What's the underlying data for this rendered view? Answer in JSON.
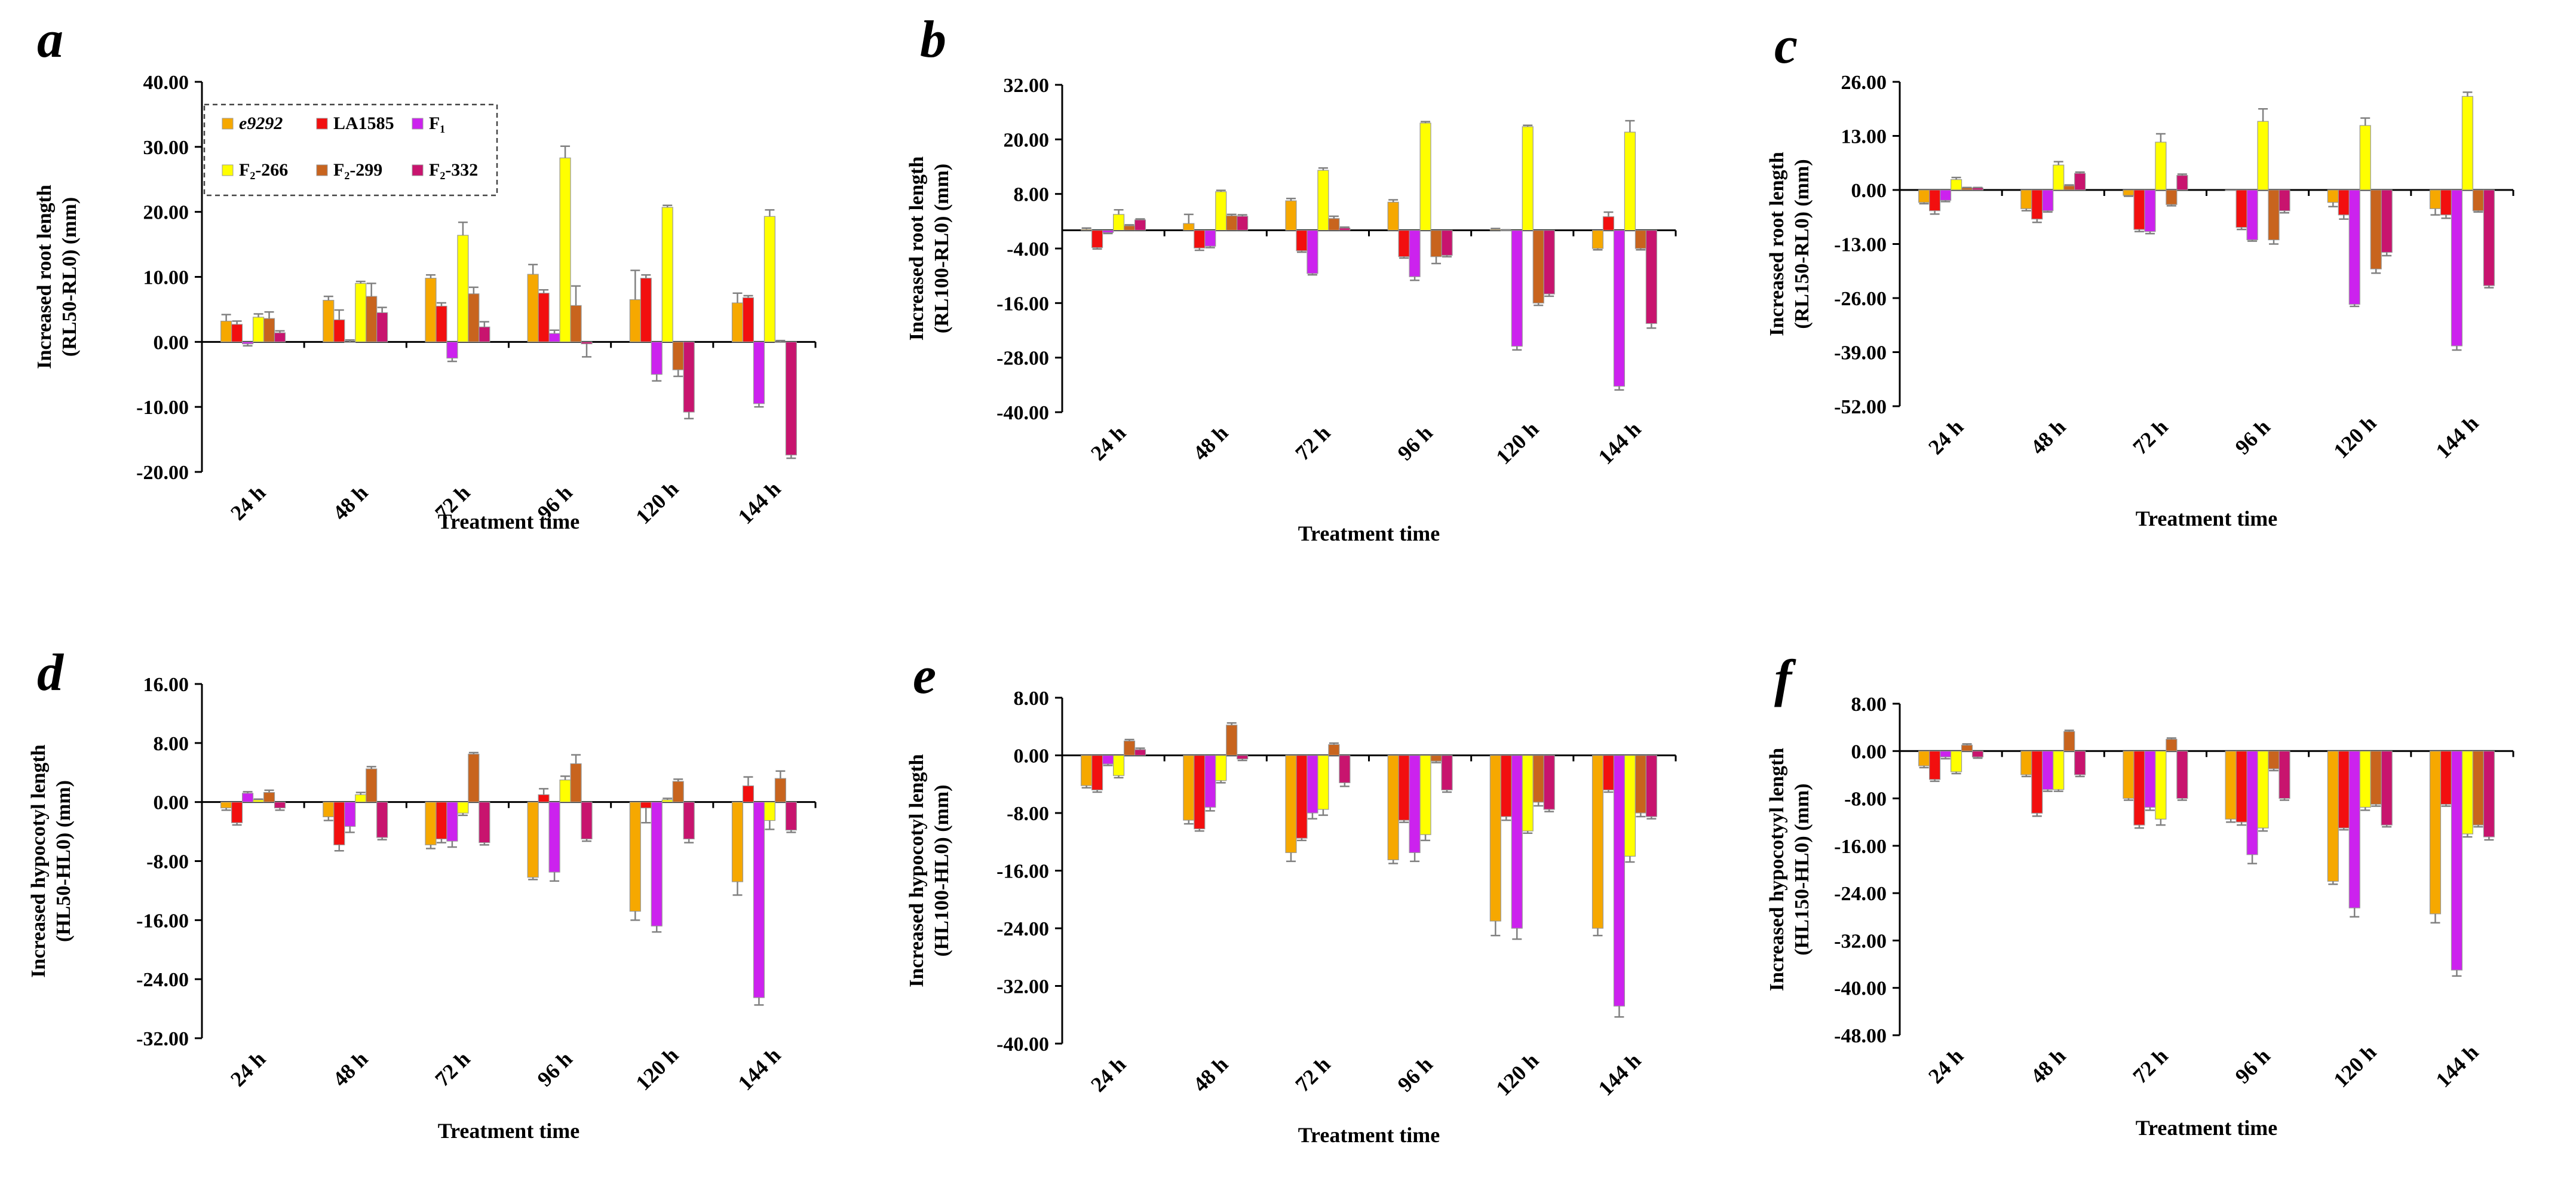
{
  "figure": {
    "type": "grouped bar chart panels"
  },
  "colors": {
    "e9292": "#F6A800",
    "LA1585": "#F20F0F",
    "F1": "#CC22EE",
    "F2-266": "#FFFF00",
    "F2-299": "#C8641E",
    "F2-332": "#C8146E",
    "errorbar": "#808080",
    "axis": "#000000"
  },
  "chart_data": [
    {
      "panel": "a",
      "type": "bar",
      "categories": [
        "24 h",
        "48 h",
        "72 h",
        "96 h",
        "120 h",
        "144 h"
      ],
      "xlabel": "Treatment time",
      "ylabel": [
        "Increased root length",
        "(RL50-RL0) (mm)"
      ],
      "yticks": [
        "40.00",
        "30.00",
        "20.00",
        "10.00",
        "0.00",
        "-10.00",
        "-20.00"
      ],
      "ylim": [
        -20,
        40
      ],
      "legend": "top-left",
      "series": [
        {
          "name": "e9292",
          "values": [
            3.2,
            6.4,
            9.8,
            10.4,
            6.5,
            6.0
          ],
          "err": [
            1.0,
            0.6,
            0.5,
            1.5,
            4.5,
            1.5
          ]
        },
        {
          "name": "LA1585",
          "values": [
            2.7,
            3.4,
            5.5,
            7.5,
            9.8,
            6.8
          ],
          "err": [
            0.5,
            1.5,
            0.5,
            0.5,
            0.5,
            0.3
          ]
        },
        {
          "name": "F₁",
          "values": [
            -0.3,
            0.0,
            -2.5,
            1.3,
            -5.0,
            -9.5
          ],
          "err": [
            0.3,
            0.3,
            0.5,
            0.5,
            1.0,
            0.5
          ]
        },
        {
          "name": "F₂-266",
          "values": [
            3.8,
            9.0,
            16.4,
            28.3,
            20.7,
            19.3
          ],
          "err": [
            0.5,
            0.3,
            2.0,
            1.8,
            0.3,
            1.0
          ]
        },
        {
          "name": "F₂-299",
          "values": [
            3.6,
            7.0,
            7.4,
            5.6,
            -4.3,
            0.0
          ],
          "err": [
            1.0,
            2.0,
            1.0,
            3.0,
            1.0,
            0.2
          ]
        },
        {
          "name": "F₂-332",
          "values": [
            1.4,
            4.5,
            2.3,
            -0.3,
            -10.8,
            -17.4
          ],
          "err": [
            0.3,
            0.8,
            0.8,
            2.0,
            1.0,
            0.5
          ]
        }
      ],
      "legend_entries": [
        "e9292",
        "LA1585",
        "F₁",
        "F₂-266",
        "F₂-299",
        "F₂-332"
      ]
    },
    {
      "panel": "b",
      "type": "bar",
      "categories": [
        "24 h",
        "48 h",
        "72 h",
        "96 h",
        "120 h",
        "144 h"
      ],
      "xlabel": "Treatment time",
      "ylabel": [
        "Increased root length",
        "(RL100-RL0) (mm)"
      ],
      "yticks": [
        "32.00",
        "20.00",
        "8.00",
        "-4.00",
        "-16.00",
        "-28.00",
        "-40.00"
      ],
      "ylim": [
        -40,
        32
      ],
      "series": [
        {
          "name": "e9292",
          "values": [
            0.2,
            1.5,
            6.5,
            6.2,
            0.2,
            -4.0
          ],
          "err": [
            0.3,
            2.0,
            0.5,
            0.5,
            0.2,
            0.3
          ]
        },
        {
          "name": "LA1585",
          "values": [
            -3.8,
            -3.9,
            -4.5,
            -5.8,
            0.0,
            3.0
          ],
          "err": [
            0.3,
            0.5,
            0.3,
            0.3,
            0.1,
            1.0
          ]
        },
        {
          "name": "F₁",
          "values": [
            -0.5,
            -3.5,
            -9.5,
            -10.2,
            -25.5,
            -34.3
          ],
          "err": [
            0.2,
            0.3,
            0.3,
            0.8,
            0.8,
            0.8
          ]
        },
        {
          "name": "F₂-266",
          "values": [
            3.5,
            8.5,
            13.2,
            23.6,
            22.8,
            21.6
          ],
          "err": [
            1.0,
            0.3,
            0.5,
            0.3,
            0.3,
            2.5
          ]
        },
        {
          "name": "F₂-299",
          "values": [
            1.0,
            3.2,
            2.6,
            -5.8,
            -16.0,
            -4.0
          ],
          "err": [
            0.2,
            0.3,
            0.5,
            1.5,
            0.5,
            0.3
          ]
        },
        {
          "name": "F₂-332",
          "values": [
            2.3,
            3.1,
            0.5,
            -5.5,
            -14.0,
            -20.5
          ],
          "err": [
            0.2,
            0.3,
            0.2,
            0.3,
            0.5,
            1.0
          ]
        }
      ]
    },
    {
      "panel": "c",
      "type": "bar",
      "categories": [
        "24 h",
        "48 h",
        "72 h",
        "96 h",
        "120 h",
        "144 h"
      ],
      "xlabel": "Treatment time",
      "ylabel": [
        "Increased root length",
        "(RL150-RL0) (mm)"
      ],
      "yticks": [
        "26.00",
        "13.00",
        "0.00",
        "-13.00",
        "-26.00",
        "-39.00",
        "-52.00"
      ],
      "ylim": [
        -52,
        26
      ],
      "series": [
        {
          "name": "e9292",
          "values": [
            -3.0,
            -4.5,
            -1.3,
            0.0,
            -3.0,
            -4.5
          ],
          "err": [
            0.3,
            0.5,
            0.2,
            0.0,
            1.0,
            1.5
          ]
        },
        {
          "name": "LA1585",
          "values": [
            -5.0,
            -7.0,
            -9.5,
            -9.0,
            -6.0,
            -6.0
          ],
          "err": [
            0.8,
            0.8,
            0.5,
            0.5,
            1.0,
            0.8
          ]
        },
        {
          "name": "F₁",
          "values": [
            -2.5,
            -5.0,
            -10.0,
            -12.0,
            -27.5,
            -37.5
          ],
          "err": [
            0.3,
            0.3,
            0.5,
            0.3,
            0.5,
            1.0
          ]
        },
        {
          "name": "F₂-266",
          "values": [
            2.5,
            6.0,
            11.5,
            16.5,
            15.5,
            22.5
          ],
          "err": [
            0.5,
            0.8,
            2.0,
            3.0,
            1.8,
            1.0
          ]
        },
        {
          "name": "F₂-299",
          "values": [
            0.5,
            1.0,
            -3.5,
            -12.0,
            -19.0,
            -5.0
          ],
          "err": [
            0.1,
            0.2,
            0.3,
            1.0,
            1.0,
            0.3
          ]
        },
        {
          "name": "F₂-332",
          "values": [
            0.5,
            4.0,
            3.5,
            -5.0,
            -15.0,
            -23.0
          ],
          "err": [
            0.1,
            0.3,
            0.3,
            0.5,
            0.8,
            0.5
          ]
        }
      ]
    },
    {
      "panel": "d",
      "type": "bar",
      "categories": [
        "24 h",
        "48 h",
        "72 h",
        "96 h",
        "120 h",
        "144 h"
      ],
      "xlabel": "Treatment time",
      "ylabel": [
        "Increased hypocotyl length",
        "(HL50-HL0) (mm)"
      ],
      "yticks": [
        "16.00",
        "8.00",
        "0.00",
        "-8.00",
        "-16.00",
        "-24.00",
        "-32.00"
      ],
      "ylim": [
        -32,
        16
      ],
      "series": [
        {
          "name": "e9292",
          "values": [
            -0.8,
            -2.0,
            -5.8,
            -10.2,
            -14.8,
            -10.8
          ],
          "err": [
            0.3,
            0.5,
            0.5,
            0.3,
            1.2,
            1.8
          ]
        },
        {
          "name": "LA1585",
          "values": [
            -2.8,
            -5.8,
            -5.0,
            1.0,
            -0.8,
            2.2
          ],
          "err": [
            0.3,
            0.8,
            0.5,
            0.8,
            2.0,
            1.2
          ]
        },
        {
          "name": "F₁",
          "values": [
            1.2,
            -3.3,
            -5.3,
            -9.5,
            -16.8,
            -26.5
          ],
          "err": [
            0.2,
            0.8,
            0.8,
            1.2,
            0.8,
            1.0
          ]
        },
        {
          "name": "F₂-266",
          "values": [
            0.3,
            1.0,
            -1.5,
            3.0,
            0.3,
            -2.5
          ],
          "err": [
            0.1,
            0.3,
            0.3,
            0.5,
            0.2,
            1.2
          ]
        },
        {
          "name": "F₂-299",
          "values": [
            1.3,
            4.5,
            6.5,
            5.2,
            2.8,
            3.2
          ],
          "err": [
            0.3,
            0.3,
            0.2,
            1.2,
            0.3,
            1.0
          ]
        },
        {
          "name": "F₂-332",
          "values": [
            -0.8,
            -4.8,
            -5.5,
            -5.0,
            -5.0,
            -3.8
          ],
          "err": [
            0.3,
            0.3,
            0.3,
            0.3,
            0.5,
            0.3
          ]
        }
      ]
    },
    {
      "panel": "e",
      "type": "bar",
      "categories": [
        "24 h",
        "48 h",
        "72 h",
        "96 h",
        "120 h",
        "144 h"
      ],
      "xlabel": "Treatment time",
      "ylabel": [
        "Increased hypocotyl length",
        "(HL100-HL0) (mm)"
      ],
      "yticks": [
        "8.00",
        "0.00",
        "-8.00",
        "-16.00",
        "-24.00",
        "-32.00",
        "-40.00"
      ],
      "ylim": [
        -40,
        8
      ],
      "series": [
        {
          "name": "e9292",
          "values": [
            -4.2,
            -9.0,
            -13.5,
            -14.5,
            -23.0,
            -24.0
          ],
          "err": [
            0.3,
            0.5,
            1.2,
            0.5,
            2.0,
            1.0
          ]
        },
        {
          "name": "LA1585",
          "values": [
            -4.8,
            -10.2,
            -11.5,
            -9.0,
            -8.5,
            -4.8
          ],
          "err": [
            0.3,
            0.3,
            0.3,
            0.3,
            0.5,
            0.3
          ]
        },
        {
          "name": "F₁",
          "values": [
            -1.2,
            -7.2,
            -8.0,
            -13.5,
            -24.0,
            -34.8
          ],
          "err": [
            0.2,
            0.5,
            0.8,
            1.2,
            1.5,
            1.5
          ]
        },
        {
          "name": "F₂-266",
          "values": [
            -2.8,
            -3.5,
            -7.5,
            -11.0,
            -10.5,
            -14.0
          ],
          "err": [
            0.3,
            0.3,
            0.8,
            0.8,
            0.3,
            0.8
          ]
        },
        {
          "name": "F₂-299",
          "values": [
            2.0,
            4.2,
            1.5,
            -0.8,
            -6.5,
            -8.0
          ],
          "err": [
            0.2,
            0.3,
            0.2,
            0.2,
            0.5,
            0.5
          ]
        },
        {
          "name": "F₂-332",
          "values": [
            0.8,
            -0.5,
            -3.8,
            -4.8,
            -7.5,
            -8.5
          ],
          "err": [
            0.2,
            0.2,
            0.5,
            0.3,
            0.3,
            0.3
          ]
        }
      ]
    },
    {
      "panel": "f",
      "type": "bar",
      "categories": [
        "24 h",
        "48 h",
        "72 h",
        "96 h",
        "120 h",
        "144 h"
      ],
      "xlabel": "Treatment time",
      "ylabel": [
        "Increased hypocotyyl length",
        "(HL150-HL0) (mm)"
      ],
      "yticks": [
        "8.00",
        "0.00",
        "-8.00",
        "-16.00",
        "-24.00",
        "-32.00",
        "-40.00",
        "-48.00"
      ],
      "ylim": [
        -48,
        8
      ],
      "series": [
        {
          "name": "e9292",
          "values": [
            -2.5,
            -4.0,
            -8.0,
            -11.5,
            -22.0,
            -27.5
          ],
          "err": [
            0.3,
            0.3,
            0.3,
            0.5,
            0.5,
            1.5
          ]
        },
        {
          "name": "LA1585",
          "values": [
            -4.8,
            -10.5,
            -12.5,
            -12.0,
            -13.0,
            -9.0
          ],
          "err": [
            0.3,
            0.5,
            0.5,
            0.5,
            0.3,
            0.3
          ]
        },
        {
          "name": "F₁",
          "values": [
            -1.0,
            -6.5,
            -9.5,
            -17.5,
            -26.5,
            -37.0
          ],
          "err": [
            0.3,
            0.3,
            0.5,
            1.5,
            1.5,
            1.0
          ]
        },
        {
          "name": "F₂-266",
          "values": [
            -3.5,
            -6.5,
            -11.5,
            -13.0,
            -9.5,
            -14.0
          ],
          "err": [
            0.3,
            0.3,
            1.0,
            0.5,
            0.5,
            0.5
          ]
        },
        {
          "name": "F₂-299",
          "values": [
            1.0,
            3.3,
            2.0,
            -3.0,
            -9.0,
            -12.5
          ],
          "err": [
            0.2,
            0.2,
            0.2,
            0.3,
            0.3,
            0.3
          ]
        },
        {
          "name": "F₂-332",
          "values": [
            -1.0,
            -4.0,
            -8.0,
            -8.0,
            -12.5,
            -14.5
          ],
          "err": [
            0.2,
            0.3,
            0.3,
            0.3,
            0.3,
            0.5
          ]
        }
      ]
    }
  ]
}
